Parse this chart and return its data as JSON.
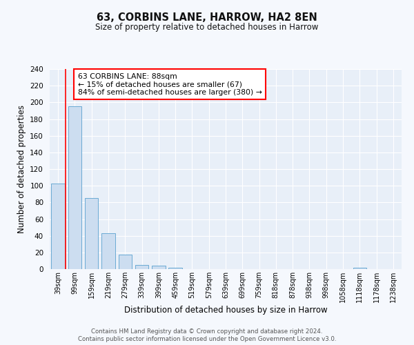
{
  "title": "63, CORBINS LANE, HARROW, HA2 8EN",
  "subtitle": "Size of property relative to detached houses in Harrow",
  "xlabel": "Distribution of detached houses by size in Harrow",
  "ylabel": "Number of detached properties",
  "bins": [
    "39sqm",
    "99sqm",
    "159sqm",
    "219sqm",
    "279sqm",
    "339sqm",
    "399sqm",
    "459sqm",
    "519sqm",
    "579sqm",
    "639sqm",
    "699sqm",
    "759sqm",
    "818sqm",
    "878sqm",
    "938sqm",
    "998sqm",
    "1058sqm",
    "1118sqm",
    "1178sqm",
    "1238sqm"
  ],
  "values": [
    103,
    195,
    85,
    43,
    17,
    5,
    4,
    2,
    0,
    0,
    0,
    0,
    0,
    0,
    0,
    0,
    0,
    0,
    2,
    0,
    0
  ],
  "bar_color": "#ccddf0",
  "bar_edge_color": "#6aaad4",
  "background_color": "#e8eff8",
  "grid_color": "#ffffff",
  "annotation_title": "63 CORBINS LANE: 88sqm",
  "annotation_line1": "← 15% of detached houses are smaller (67)",
  "annotation_line2": "84% of semi-detached houses are larger (380) →",
  "footer_line1": "Contains HM Land Registry data © Crown copyright and database right 2024.",
  "footer_line2": "Contains public sector information licensed under the Open Government Licence v3.0.",
  "ylim": [
    0,
    240
  ],
  "yticks": [
    0,
    20,
    40,
    60,
    80,
    100,
    120,
    140,
    160,
    180,
    200,
    220,
    240
  ],
  "red_line_x": 0.45,
  "fig_bg": "#f5f8fd"
}
